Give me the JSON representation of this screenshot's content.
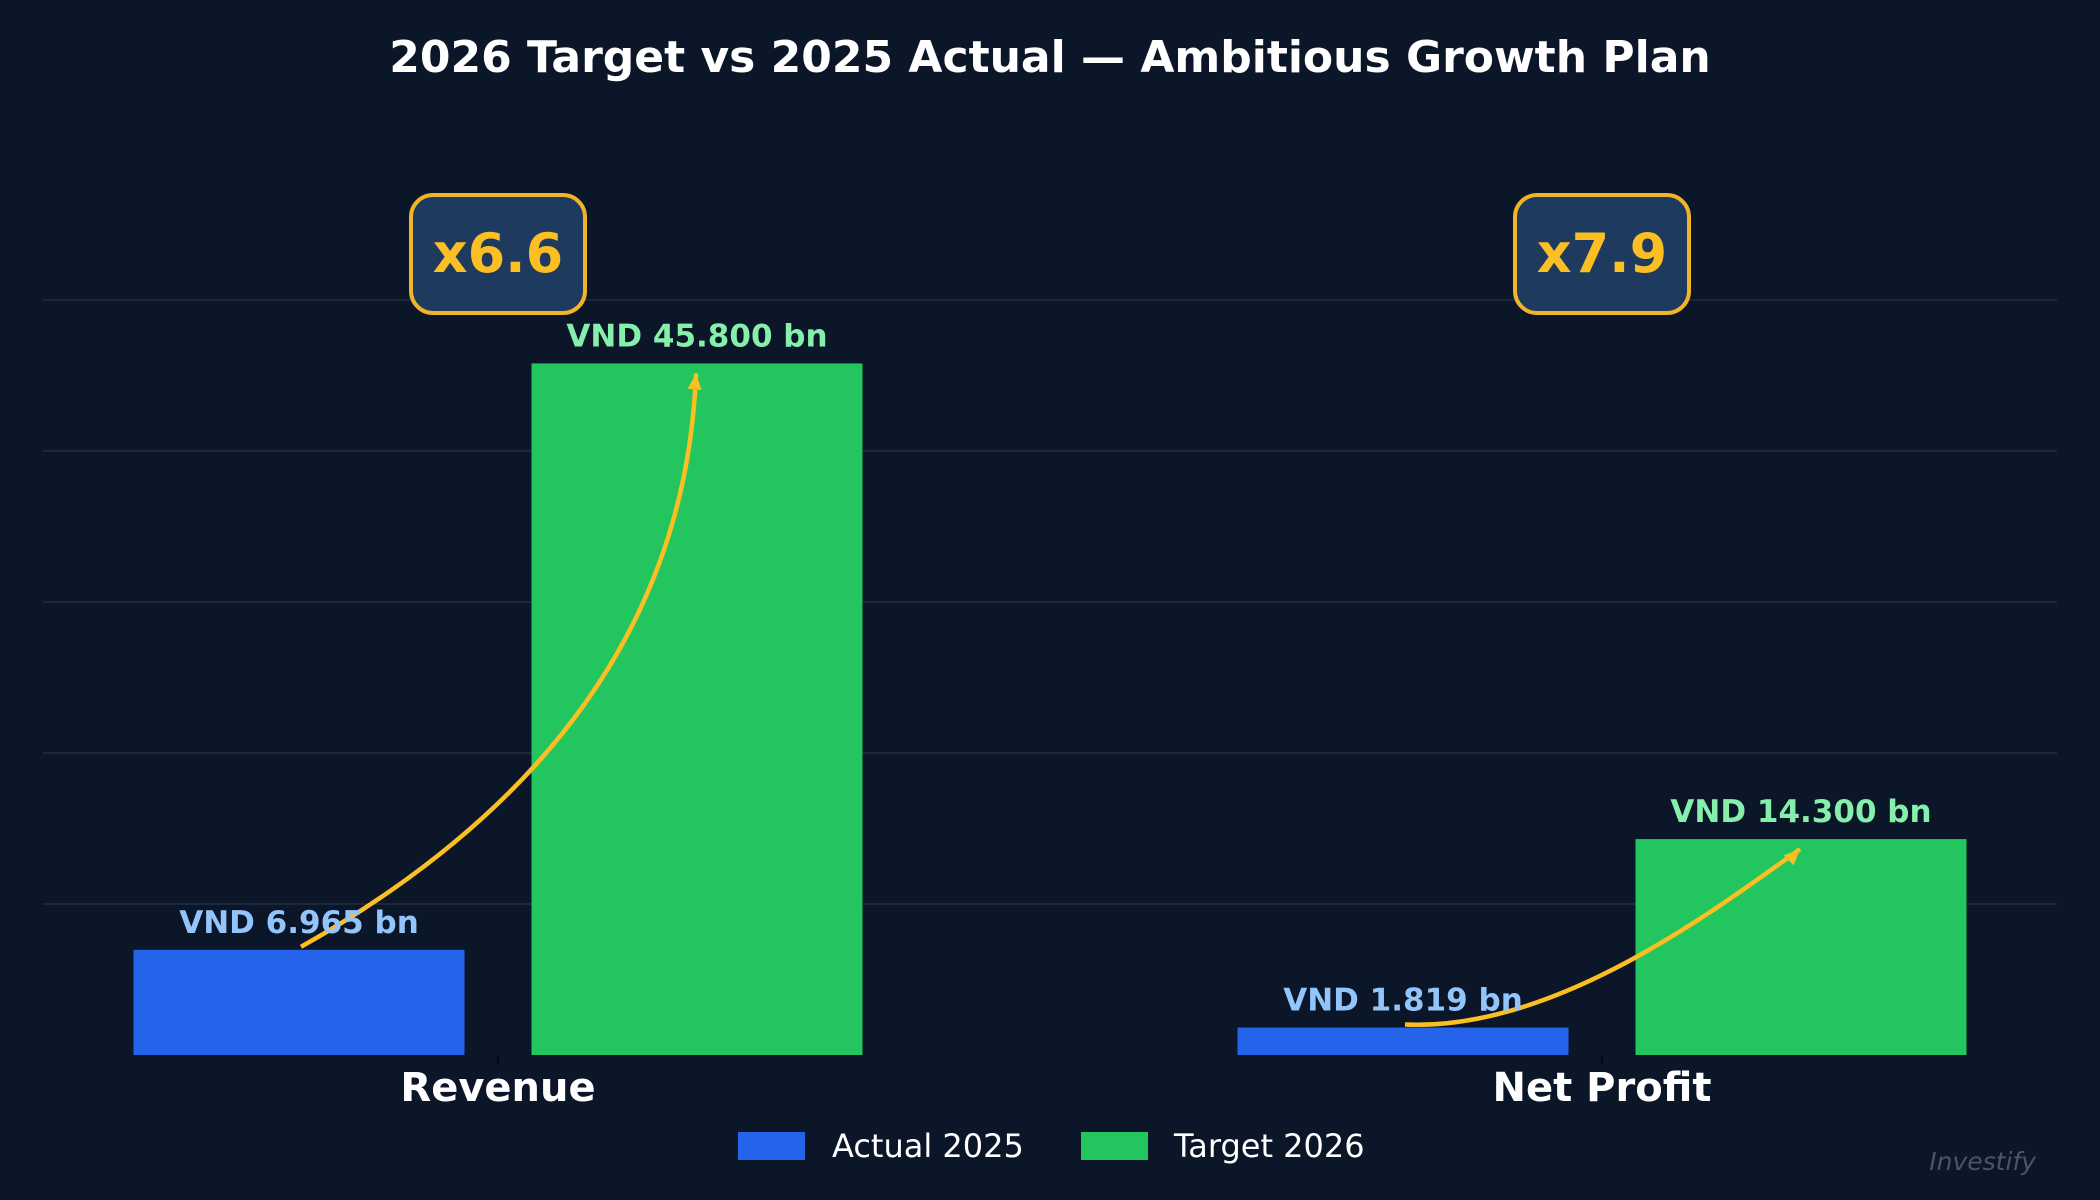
{
  "chart_data": {
    "type": "bar",
    "title": "2026 Target vs 2025 Actual — Ambitious Growth Plan",
    "categories": [
      "Revenue",
      "Net Profit"
    ],
    "series": [
      {
        "name": "Actual 2025",
        "values": [
          6.965,
          1.819
        ],
        "labels": [
          "VND 6.965 bn",
          "VND 1.819 bn"
        ],
        "color": "#2563eb",
        "label_color": "#93c5fd"
      },
      {
        "name": "Target 2026",
        "values": [
          45.8,
          14.3
        ],
        "labels": [
          "VND 45.800 bn",
          "VND 14.300 bn"
        ],
        "color": "#22c55e",
        "label_color": "#86efac"
      }
    ],
    "multipliers": [
      "x6.6",
      "x7.9"
    ],
    "ylim": [
      0,
      55
    ],
    "y_gridlines": [
      10,
      20,
      30,
      40,
      50
    ],
    "grid": true,
    "y_tick_labels_shown": false,
    "legend_placement": "bottom-center",
    "arrow_color": "#fbbf24",
    "badge_fill": "#1e3a5f",
    "background": "#0b1628"
  },
  "watermark": "Investify"
}
